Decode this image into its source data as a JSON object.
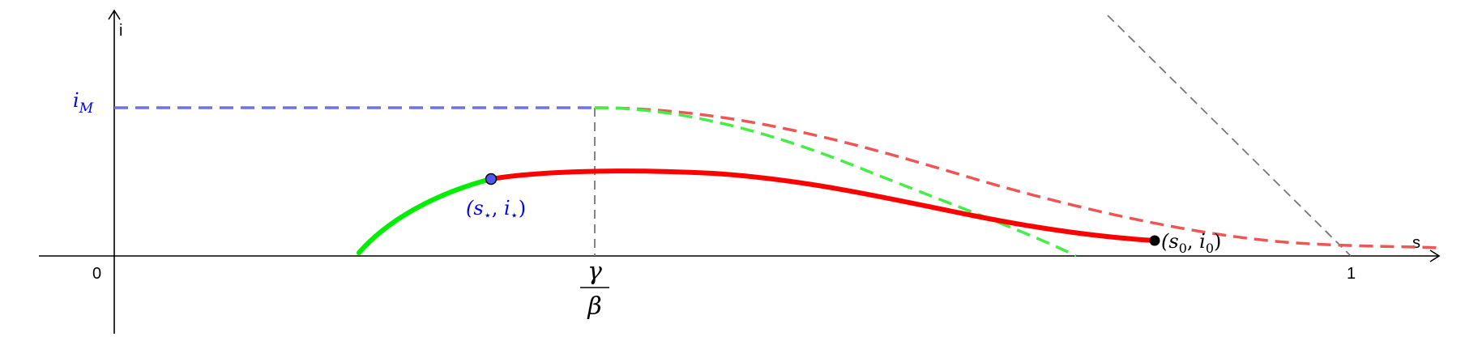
{
  "axes": {
    "x_label": "s",
    "y_label": "i",
    "origin_label": "0",
    "x_tick_one_label": "1"
  },
  "labels": {
    "i_max": "iM",
    "threshold_numerator": "γ",
    "threshold_denominator": "β",
    "star_point": "(s⋆, i⋆)",
    "initial_point": "(s0, i0)"
  },
  "colors": {
    "axis": "#000000",
    "blue_dashed": "#7070ee",
    "red_curve": "#ff0000",
    "red_dashed": "#ee5555",
    "green_curve": "#00ee00",
    "green_dashed": "#44ee44",
    "gray_dashed": "#777777",
    "star_point_fill": "#5555ee",
    "star_label": "#0000ee",
    "i_max_label": "#0000ee"
  }
}
